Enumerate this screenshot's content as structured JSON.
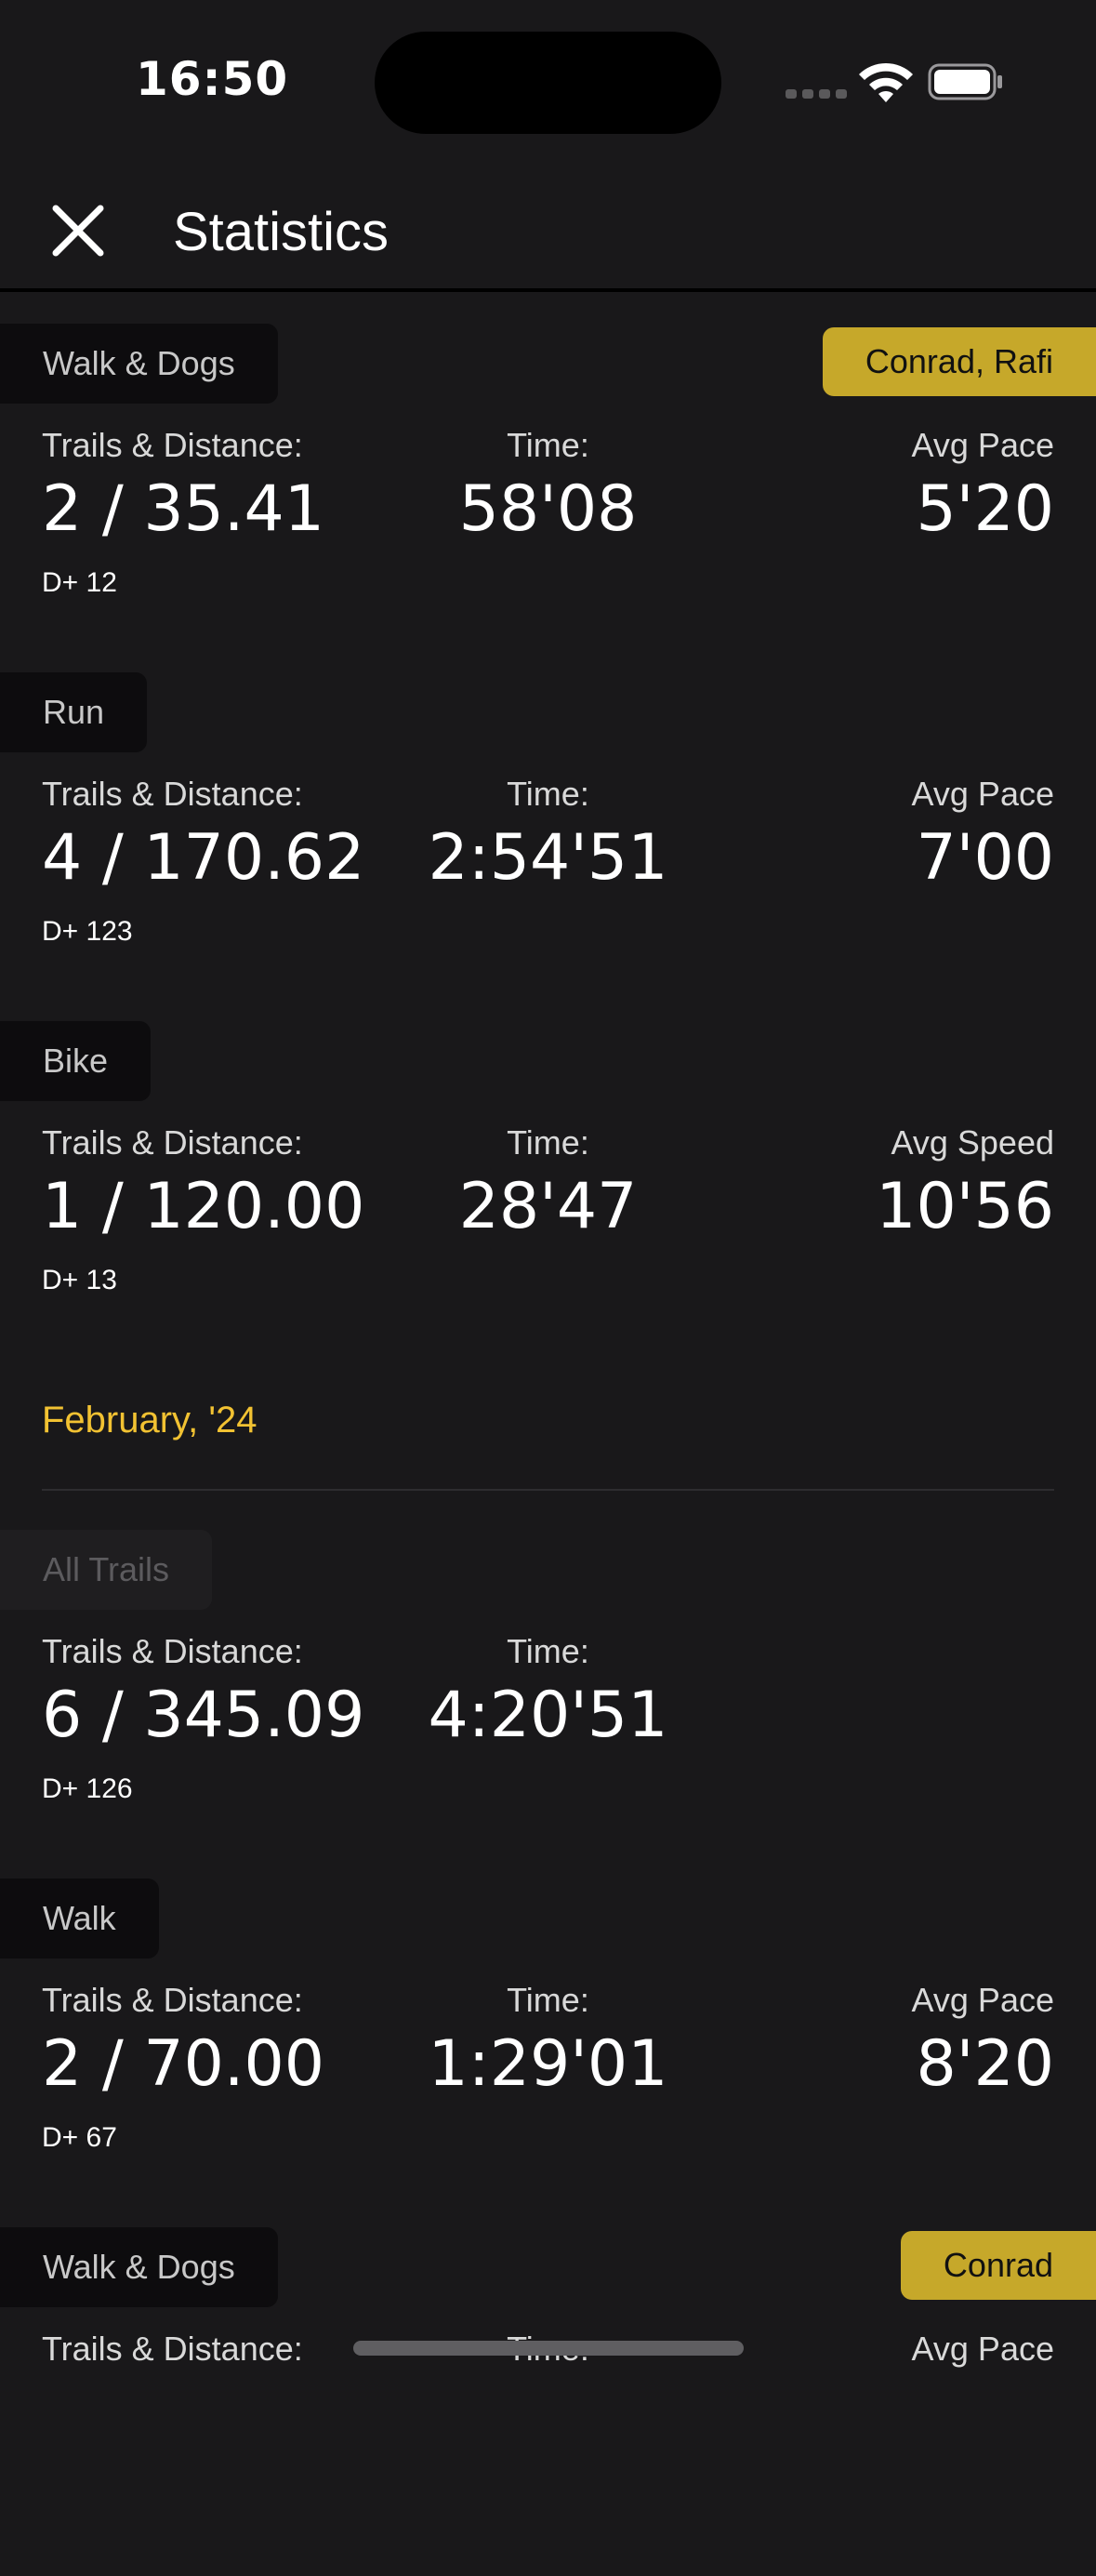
{
  "status_bar": {
    "time": "16:50"
  },
  "header": {
    "title": "Statistics"
  },
  "sections_before": [
    {
      "tag": "Walk & Dogs",
      "badge": "Conrad, Rafi",
      "trails_label": "Trails & Distance:",
      "trails_value": "2 / 35.41",
      "dplus": "D+ 12",
      "time_label": "Time:",
      "time_value": "58'08",
      "metric_label": "Avg Pace",
      "metric_value": "5'20"
    },
    {
      "tag": "Run",
      "trails_label": "Trails & Distance:",
      "trails_value": "4 / 170.62",
      "dplus": "D+ 123",
      "time_label": "Time:",
      "time_value": "2:54'51",
      "metric_label": "Avg Pace",
      "metric_value": "7'00"
    },
    {
      "tag": "Bike",
      "trails_label": "Trails & Distance:",
      "trails_value": "1 / 120.00",
      "dplus": "D+ 13",
      "time_label": "Time:",
      "time_value": "28'47",
      "metric_label": "Avg Speed",
      "metric_value": "10'56"
    }
  ],
  "month": {
    "label": "February, '24"
  },
  "sections_after": [
    {
      "tag": "All Trails",
      "trails_label": "Trails & Distance:",
      "trails_value": "6 / 345.09",
      "dplus": "D+ 126",
      "time_label": "Time:",
      "time_value": "4:20'51"
    },
    {
      "tag": "Walk",
      "trails_label": "Trails & Distance:",
      "trails_value": "2 / 70.00",
      "dplus": "D+ 67",
      "time_label": "Time:",
      "time_value": "1:29'01",
      "metric_label": "Avg Pace",
      "metric_value": "8'20"
    },
    {
      "tag": "Walk & Dogs",
      "badge": "Conrad",
      "trails_label": "Trails & Distance:",
      "time_label": "Time:",
      "metric_label": "Avg Pace"
    }
  ],
  "colors": {
    "accent": "#f2c232",
    "badge": "#c6a82a",
    "background": "#19181a"
  }
}
